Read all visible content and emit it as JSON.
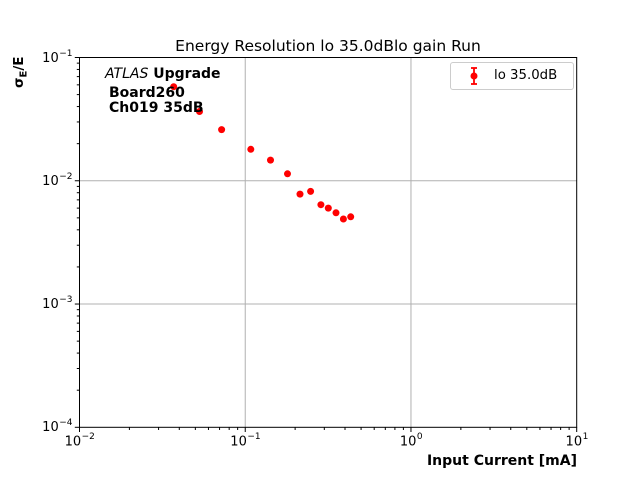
{
  "figure": {
    "title": "Energy Resolution lo 35.0dBlo gain Run"
  },
  "annotation": {
    "atlas": "ATLAS",
    "upgrade": " Upgrade",
    "line2": "Board260",
    "line3": "Ch019 35dB"
  },
  "legend": {
    "label": "lo 35.0dB"
  },
  "axes": {
    "xlabel": "Input Current [mA]",
    "ylabel_sigma": "σ",
    "ylabel_sub": "E",
    "ylabel_rest": "/E",
    "x_ticks": [
      {
        "value": 0.01,
        "base": "10",
        "exp": "−2"
      },
      {
        "value": 0.1,
        "base": "10",
        "exp": "−1"
      },
      {
        "value": 1,
        "base": "10",
        "exp": "0"
      },
      {
        "value": 10,
        "base": "10",
        "exp": "1"
      }
    ],
    "y_ticks": [
      {
        "value": 0.1,
        "base": "10",
        "exp": "−1"
      },
      {
        "value": 0.01,
        "base": "10",
        "exp": "−2"
      },
      {
        "value": 0.001,
        "base": "10",
        "exp": "−3"
      },
      {
        "value": 0.0001,
        "base": "10",
        "exp": "−4"
      }
    ]
  },
  "colors": {
    "marker": "#ff0000",
    "grid": "#b0b0b0",
    "spine": "#000000",
    "legend_border": "#cccccc"
  },
  "chart_data": {
    "type": "scatter",
    "title": "Energy Resolution lo 35.0dBlo gain Run",
    "xlabel": "Input Current [mA]",
    "ylabel": "σ_E/E",
    "x_scale": "log",
    "y_scale": "log",
    "xlim": [
      0.01,
      10
    ],
    "ylim": [
      0.0001,
      0.1
    ],
    "grid": "major-only",
    "legend_position": "upper-right",
    "series": [
      {
        "name": "lo 35.0dB",
        "marker": "errorbar-dot",
        "color": "#ff0000",
        "x": [
          0.037,
          0.053,
          0.072,
          0.108,
          0.142,
          0.18,
          0.214,
          0.248,
          0.286,
          0.317,
          0.353,
          0.391,
          0.433
        ],
        "y": [
          0.058,
          0.0365,
          0.026,
          0.018,
          0.0147,
          0.0114,
          0.0078,
          0.0082,
          0.0064,
          0.006,
          0.0055,
          0.0049,
          0.0051
        ]
      }
    ]
  }
}
